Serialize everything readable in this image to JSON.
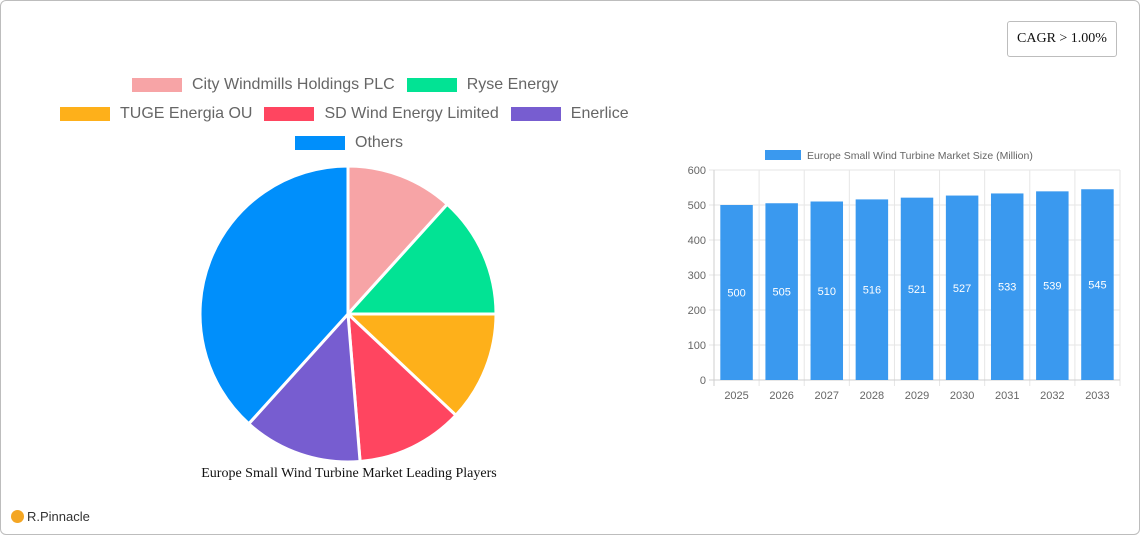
{
  "badge": {
    "cagr_label": "CAGR > 1.00%"
  },
  "logo": {
    "text": "R.Pinnacle",
    "icon": "logo-circle-icon",
    "color": "#f4a623"
  },
  "chart_data": [
    {
      "type": "pie",
      "title": "Europe Small Wind Turbine Market Leading Players",
      "legend_position": "top",
      "categories": [
        "City Windmills Holdings PLC",
        "Ryse Energy",
        "TUGE Energia OU",
        "SD Wind Energy Limited",
        "Enerlice",
        "Others"
      ],
      "values": [
        11.7,
        13.3,
        12.0,
        11.7,
        13.0,
        38.3
      ],
      "colors": [
        "#f7a4a6",
        "#02e394",
        "#feb01a",
        "#ff4560",
        "#775dd0",
        "#008ffb"
      ]
    },
    {
      "type": "bar",
      "title": "",
      "legend": [
        "Europe Small Wind Turbine Market Size (Million)"
      ],
      "legend_position": "top",
      "categories": [
        "2025",
        "2026",
        "2027",
        "2028",
        "2029",
        "2030",
        "2031",
        "2032",
        "2033"
      ],
      "series": [
        {
          "name": "Europe Small Wind Turbine Market Size (Million)",
          "values": [
            500,
            505,
            510,
            516,
            521,
            527,
            533,
            539,
            545
          ],
          "color": "#3a99ef"
        }
      ],
      "xlabel": "",
      "ylabel": "",
      "ylim": [
        0,
        600
      ],
      "yticks": [
        0,
        100,
        200,
        300,
        400,
        500,
        600
      ],
      "grid": true,
      "data_labels": true
    }
  ]
}
